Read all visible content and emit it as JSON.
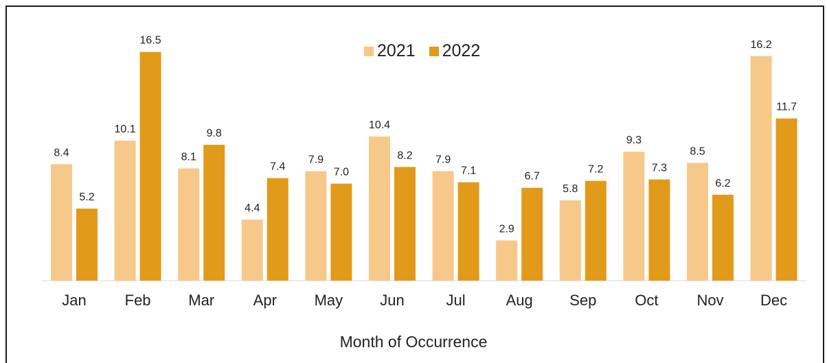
{
  "chart_data": {
    "type": "bar",
    "categories": [
      "Jan",
      "Feb",
      "Mar",
      "Apr",
      "May",
      "Jun",
      "Jul",
      "Aug",
      "Sep",
      "Oct",
      "Nov",
      "Dec"
    ],
    "series": [
      {
        "name": "2021",
        "color": "#f6c98a",
        "values": [
          8.4,
          10.1,
          8.1,
          4.4,
          7.9,
          10.4,
          7.9,
          2.9,
          5.8,
          9.3,
          8.5,
          16.2
        ]
      },
      {
        "name": "2022",
        "color": "#e29a1b",
        "values": [
          5.2,
          16.5,
          9.8,
          7.4,
          7.0,
          8.2,
          7.1,
          6.7,
          7.2,
          7.3,
          6.2,
          11.7
        ]
      }
    ],
    "title": "",
    "xlabel": "Month of Occurrence",
    "ylabel": "",
    "ylim": [
      0,
      17
    ],
    "grid": false,
    "legend_position": "top-center"
  }
}
